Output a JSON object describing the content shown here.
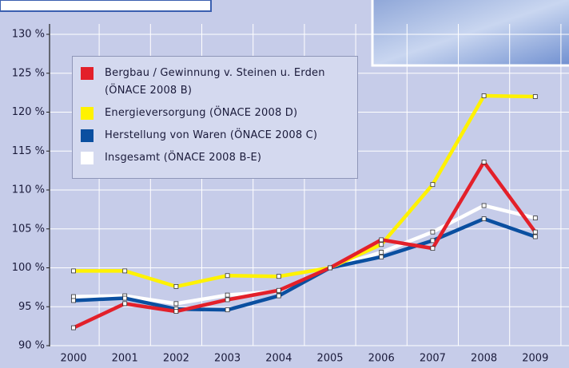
{
  "chart_data": {
    "type": "line",
    "categories": [
      "2000",
      "2001",
      "2002",
      "2003",
      "2004",
      "2005",
      "2006",
      "2007",
      "2008",
      "2009"
    ],
    "series": [
      {
        "name": "Bergbau / Gewinnung v. Steinen u. Erden (ÖNACE 2008 B)",
        "color": "#e3202a",
        "values": [
          92.3,
          95.4,
          94.4,
          95.9,
          97.1,
          100,
          103.6,
          102.5,
          113.6,
          104.6
        ]
      },
      {
        "name": "Energieversorgung (ÖNACE 2008 D)",
        "color": "#fff200",
        "values": [
          99.6,
          99.6,
          97.6,
          99,
          98.9,
          100,
          103,
          110.7,
          122.1,
          122
        ]
      },
      {
        "name": "Herstellung von Waren (ÖNACE 2008 C)",
        "color": "#0a4fa0",
        "values": [
          95.8,
          96.1,
          94.7,
          94.6,
          96.4,
          100,
          101.4,
          103.5,
          106.3,
          104
        ]
      },
      {
        "name": "Insgesamt (ÖNACE 2008 B-E)",
        "color": "#ffffff",
        "values": [
          96.3,
          96.4,
          95.4,
          96.5,
          97,
          100,
          102,
          104.6,
          108,
          106.4
        ]
      }
    ],
    "ylim": [
      90,
      130
    ],
    "yticks": [
      {
        "value": 90,
        "label": "90 %"
      },
      {
        "value": 95,
        "label": "95 %"
      },
      {
        "value": 100,
        "label": "100 %"
      },
      {
        "value": 105,
        "label": "105 %"
      },
      {
        "value": 110,
        "label": "110 %"
      },
      {
        "value": 115,
        "label": "115 %"
      },
      {
        "value": 120,
        "label": "120 %"
      },
      {
        "value": 125,
        "label": "125 %"
      },
      {
        "value": 130,
        "label": "130 %"
      }
    ],
    "grid": true
  }
}
